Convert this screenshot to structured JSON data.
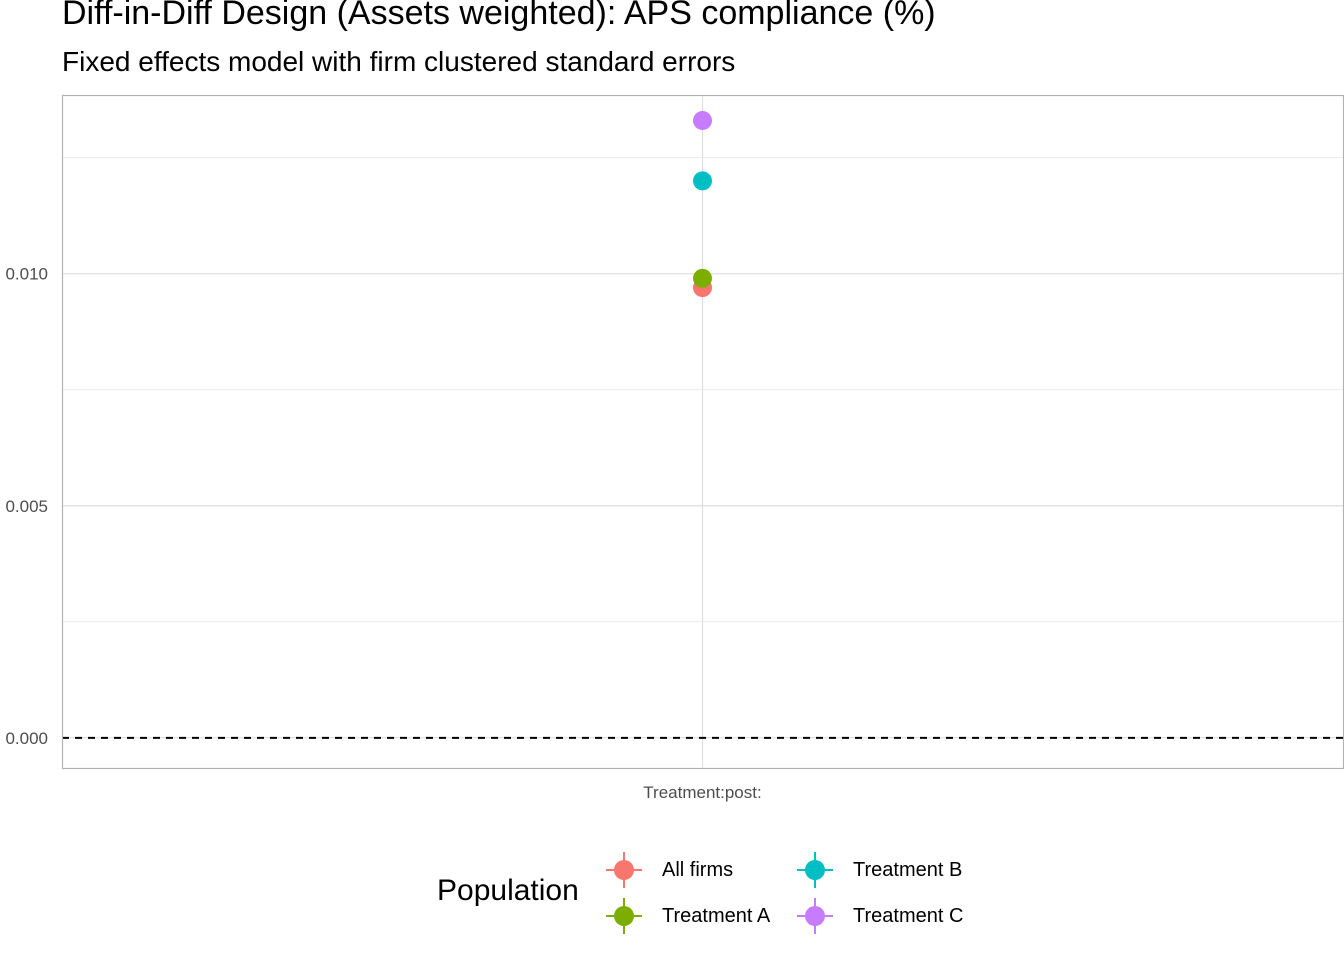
{
  "chart_data": {
    "type": "scatter",
    "title": "Diff-in-Diff Design (Assets weighted): APS compliance (%)",
    "subtitle": "Fixed effects model with firm clustered standard errors",
    "xlabel": "",
    "ylabel": "",
    "categories": [
      "Treatment:post:"
    ],
    "y_ticks": [
      "0.000",
      "0.005",
      "0.010"
    ],
    "ylim": [
      -0.00065,
      0.01385
    ],
    "reference_line": {
      "y": 0,
      "style": "dashed"
    },
    "grid": true,
    "legend": {
      "title": "Population",
      "position": "bottom"
    },
    "series": [
      {
        "name": "All firms",
        "color": "#F8766D",
        "values": [
          0.0097
        ]
      },
      {
        "name": "Treatment A",
        "color": "#7CAE00",
        "values": [
          0.0099
        ]
      },
      {
        "name": "Treatment B",
        "color": "#00BFC4",
        "values": [
          0.012
        ]
      },
      {
        "name": "Treatment C",
        "color": "#C77CFF",
        "values": [
          0.0133
        ]
      }
    ]
  }
}
